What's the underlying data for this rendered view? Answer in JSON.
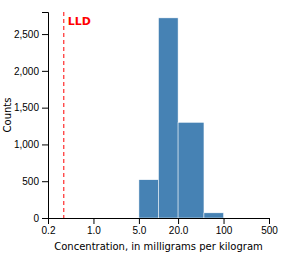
{
  "chart_data": {
    "type": "histogram",
    "xlabel": "Concentration, in milligrams per kilogram",
    "ylabel": "Counts",
    "bins": [
      0.2,
      0.5,
      1.0,
      2.0,
      5.0,
      10.0,
      20.0,
      50.0,
      100.0,
      500.0
    ],
    "values": [
      0,
      0,
      0,
      0,
      520,
      2720,
      1300,
      70,
      0
    ],
    "log": "x",
    "xlim": [
      0.2,
      500
    ],
    "ylim": [
      0,
      2800
    ],
    "xticks": [
      0.2,
      {
        "value": 1.0,
        "label": "1.0"
      },
      {
        "value": 5.0,
        "label": "5.0"
      },
      {
        "value": 20.0,
        "label": "20.0"
      },
      100,
      500
    ],
    "yticks": [
      0,
      500,
      {
        "value": 1000,
        "label": "1,000"
      },
      {
        "value": 1500,
        "label": "1,500"
      },
      {
        "value": 2000,
        "label": "2,000"
      },
      {
        "value": 2500,
        "label": "2,500"
      }
    ],
    "annotations": [
      {
        "text": "LLD",
        "x": 0.35,
        "color": "#ff0000",
        "line_style": "dashed"
      }
    ]
  }
}
